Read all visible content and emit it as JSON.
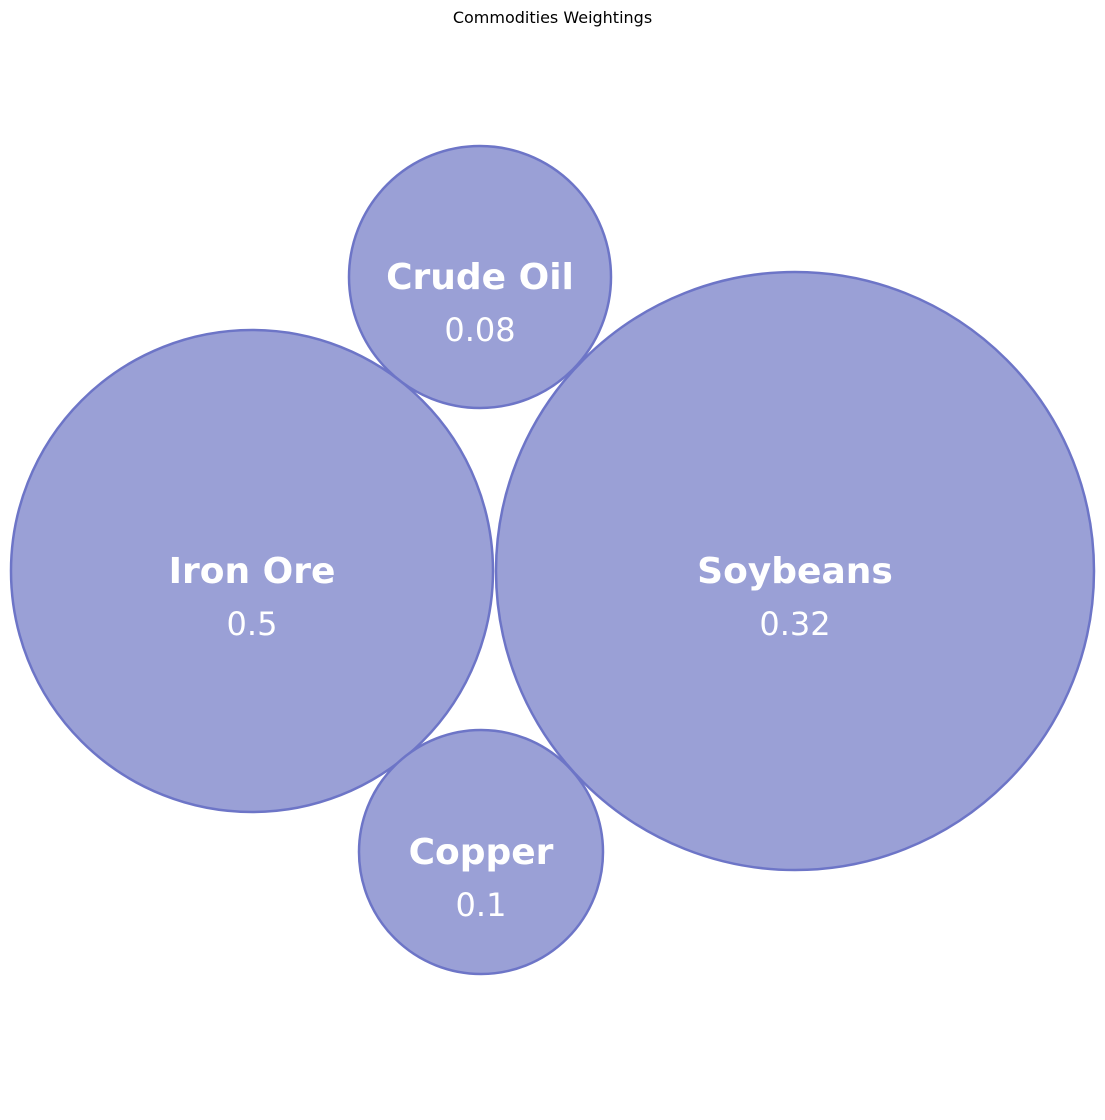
{
  "chart_data": {
    "type": "bubble",
    "title": "Commodities Weightings",
    "items": [
      {
        "name": "Iron Ore",
        "value": 0.5
      },
      {
        "name": "Soybeans",
        "value": 0.32
      },
      {
        "name": "Crude Oil",
        "value": 0.08
      },
      {
        "name": "Copper",
        "value": 0.1
      }
    ],
    "fill_color": "#9aa0d6",
    "stroke_color": "#6d75c7"
  }
}
